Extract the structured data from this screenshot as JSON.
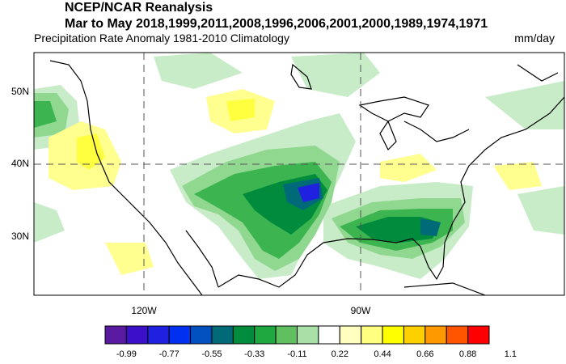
{
  "header": {
    "title": "NCEP/NCAR Reanalysis",
    "subtitle": "Mar to May 2018,1999,2011,2008,1996,2006,2001,2000,1989,1974,1971",
    "left_label": "Precipitation Rate Anomaly  1981-2010 Climatology",
    "units": "mm/day"
  },
  "map": {
    "lat_labels": [
      "50N",
      "40N",
      "30N"
    ],
    "lon_labels": [
      "120W",
      "90W"
    ]
  },
  "colorbar": {
    "colors": [
      "#5a1aa0",
      "#3c10c8",
      "#2020e0",
      "#0030f0",
      "#0050c0",
      "#006a78",
      "#008c3c",
      "#20a840",
      "#60c060",
      "#a8e0a8",
      "#ffffff",
      "#ffffc0",
      "#ffff80",
      "#ffff00",
      "#ffd000",
      "#ff9900",
      "#ff5500",
      "#ff0000"
    ],
    "ticks": [
      -0.99,
      -0.77,
      -0.55,
      -0.33,
      -0.11,
      0.22,
      0.44,
      0.66,
      0.88,
      1.1
    ]
  }
}
